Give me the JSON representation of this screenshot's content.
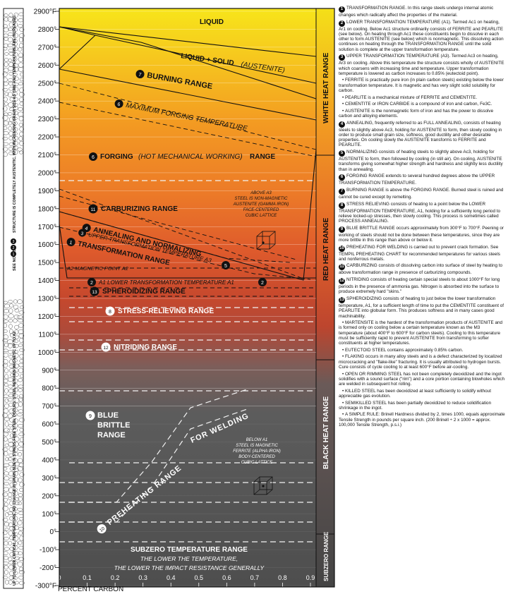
{
  "y_axis": {
    "labels": [
      "2900°F",
      "2800°",
      "2700°",
      "2600°",
      "2500°",
      "2400°",
      "2300°",
      "2200°",
      "2100°",
      "2000°",
      "1900°",
      "1800°",
      "1700°",
      "1600°",
      "1500°",
      "1400°",
      "1300°",
      "1200°",
      "1100°",
      "1000°",
      "900°",
      "800°",
      "700°",
      "600°",
      "500°",
      "400°",
      "300°",
      "200°",
      "100°",
      "0°",
      "-100°",
      "-200°",
      "-300°F"
    ],
    "values": [
      2900,
      2800,
      2700,
      2600,
      2500,
      2400,
      2300,
      2200,
      2100,
      2000,
      1900,
      1800,
      1700,
      1600,
      1500,
      1400,
      1300,
      1200,
      1100,
      1000,
      900,
      800,
      700,
      600,
      500,
      400,
      300,
      200,
      100,
      0,
      -100,
      -200,
      -300
    ]
  },
  "x_axis": {
    "labels": [
      "0",
      "0.1",
      "0.2",
      "0.3",
      "0.4",
      "0.5",
      "0.6",
      "0.7",
      "0.8",
      "0.9"
    ],
    "values": [
      0,
      0.1,
      0.2,
      0.3,
      0.4,
      0.5,
      0.6,
      0.7,
      0.8,
      0.9
    ],
    "title": "PERCENT CARBON"
  },
  "side_left": {
    "top_text": "STRUCTURE IS COMPLETELY AUSTENITIC, WITH INCREASING GRAIN SIZE AS TIME AND TEMPERATURE ARE INCREASED.",
    "see_notes": "SEE NOTES",
    "see_notes_nums": [
      "1",
      "2",
      "3"
    ],
    "bottom_text": "UP TO LOWER CRITICAL TEMPERATURE, NO CHANGE IN GRAIN SIZE IN STRESS-FREE STEEL OCCURS. STEEL REMAINS MAGNETIC UP TO A2"
  },
  "bands": {
    "white": "WHITE HEAT RANGE",
    "red": "RED HEAT RANGE",
    "black": "BLACK HEAT RANGE",
    "subzero": "SUBZERO RANGE"
  },
  "regions": {
    "liquid": "LIQUID",
    "liquid_solid": "LIQUID + SOLID",
    "liquid_solid_paren": "(AUSTENITE)",
    "burning_num": "7",
    "burning": "BURNING RANGE",
    "max_forging_num": "6",
    "max_forging": "MAXIMUM FORGING TEMPERATURE",
    "forging_num": "6",
    "forging": "FORGING",
    "forging_paren": "(HOT MECHANICAL WORKING)",
    "forging_tail": "RANGE",
    "carburizing_num": "11",
    "carburizing": "CARBURIZING RANGE",
    "annealing_num": "4",
    "annealing": "ANNEALING AND NORMALIZING",
    "normalizing_num": "5",
    "upper_num": "3",
    "upper": "UPPER TRANSFORMATION TEMPERATURE A3",
    "transformation_num": "1",
    "transformation": "TRANSFORMATION RANGE",
    "magnetic": "A2 MAGNETIC POINT A2",
    "lower_num_left": "2",
    "lower": "A1 LOWER TRANSFORMATION TEMPERATURE A1",
    "lower_num_right": "2",
    "spheroidizing_num": "13",
    "spheroidizing": "SPHEROIDIZING RANGE",
    "stress_num": "8",
    "stress": "STRESS-RELIEVING RANGE",
    "nitriding_num": "12",
    "nitriding": "NITRIDING RANGE",
    "blue_num": "9",
    "blue1": "BLUE",
    "blue2": "BRITTLE",
    "blue3": "RANGE",
    "preheat_num": "10",
    "preheat1": "PREHEATING RANGE",
    "preheat2": "FOR WELDING",
    "subzero": "SUBZERO TEMPERATURE RANGE",
    "subzero_sub1": "THE LOWER THE TEMPERATURE,",
    "subzero_sub2": "THE LOWER THE IMPACT RESISTANCE GENERALLY"
  },
  "above_a": [
    "ABOVE A3",
    "STEEL IS NON-MAGNETIC",
    "AUSTENITE (GAMMA IRON)",
    "FACE-CENTERED",
    "CUBIC LATTICE"
  ],
  "below_a": [
    "BELOW A1",
    "STEEL IS MAGNETIC",
    "FERRITE (ALPHA IRON)",
    "BODY-CENTERED",
    "CUBIC LATTICE"
  ],
  "notes": [
    {
      "num": "1",
      "text": "TRANSFORMATION RANGE. In this range steels undergo internal atomic changes which radically affect the properties of the material."
    },
    {
      "num": "2",
      "text": "LOWER TRANSFORMATION TEMPERATURE (A1). Termed Ac1 on heating, Ar1 on cooling. Below Ac1 structure ordinarily consists of FERRITE and PEARLITE (see below). On heating through Ac1 these constituents begin to dissolve in each other to form AUSTENITE (see below) which is nonmagnetic. This dissolving action continues on heating through the TRANSFORMATION RANGE until the solid solution is complete at the upper transformation temperature."
    },
    {
      "num": "3",
      "text": "UPPER TRANSFORMATION TEMPERATURE (A3). Termed Ac3 on heating, Ar3 on cooling. Above this temperature the structure consists wholly of AUSTENITE which coarsens with increasing time and temperature. Upper transformation temperature is lowered as carbon increases to 0.85% (eutectoid point)."
    },
    {
      "num": "",
      "text": "FERRITE is practically pure iron (in plain carbon steels) existing below the lower transformation temperature. It is magnetic and has very slight solid solubility for carbon."
    },
    {
      "num": "",
      "text": "PEARLITE is a mechanical mixture of FERRITE and CEMENTITE."
    },
    {
      "num": "",
      "text": "CEMENTITE or IRON CARBIDE is a compound of iron and carbon, Fe3C."
    },
    {
      "num": "",
      "text": "AUSTENITE is the nonmagnetic form of iron and has the power to dissolve carbon and alloying elements."
    },
    {
      "num": "4",
      "text": "ANNEALING, frequently referred to as FULL ANNEALING, consists of heating steels to slightly above Ac3, holding for AUSTENITE to form, then slowly cooling in order to produce small grain size, softness, good ductility and other desirable properties. On cooling slowly the AUSTENITE transforms to FERRITE and PEARLITE."
    },
    {
      "num": "5",
      "text": "NORMALIZING consists of heating steels to slightly above Ac3, holding for AUSTENITE to form, then followed by cooling (in still air). On cooling, AUSTENITE transforms giving somewhat higher strength and hardness and slightly less ductility than in annealing."
    },
    {
      "num": "6",
      "text": "FORGING RANGE extends to several hundred degrees above the UPPER TRANSFORMATION TEMPERATURE."
    },
    {
      "num": "7",
      "text": "BURNING RANGE is above the FORGING RANGE. Burned steel is ruined and cannot be cured except by remelting."
    },
    {
      "num": "8",
      "text": "STRESS RELIEVING consists of heating to a point below the LOWER TRANSFORMATION TEMPERATURE, A1, holding for a sufficiently long period to relieve locked-up stresses, then slowly cooling. This process is sometimes called PROCESS ANNEALING."
    },
    {
      "num": "9",
      "text": "BLUE BRITTLE RANGE occurs approximately from 300°F to 700°F. Peening or working of steels should not be done between these temperatures, since they are more brittle in this range than above or below it."
    },
    {
      "num": "10",
      "text": "PREHEATING FOR WELDING is carried out to prevent crack formation. See TEMPIL PREHEATING CHART for recommended temperatures for various steels and nonferrous metals."
    },
    {
      "num": "11",
      "text": "CARBURIZING consists of dissolving carbon into surface of steel by heating to above transformation range in presence of carburizing compounds."
    },
    {
      "num": "12",
      "text": "NITRIDING consists of heating certain special steels to about 1000°F for long periods in the presence of ammonia gas. Nitrogen is absorbed into the surface to produce extremely hard \"skins.\""
    },
    {
      "num": "13",
      "text": "SPHEROIDIZING consists of heating to just below the lower transformation temperature, A1, for a sufficient length of time to put the CEMENTITE constituent of PEARLITE into globular form. This produces softness and in many cases good machinability."
    },
    {
      "num": "",
      "text": "MARTENSITE is the hardest of the transformation products of AUSTENITE and is formed only on cooling below a certain temperature known as the M3 temperature (about 400°F to 600°F for carbon steels). Cooling to this temperature must be sufficiently rapid to prevent AUSTENITE from transforming to softer constituents at higher temperatures."
    },
    {
      "num": "",
      "text": "EUTECTOID STEEL contains approximately 0.85% carbon."
    },
    {
      "num": "",
      "text": "FLAKING occurs in many alloy steels and is a defect characterized by localized microcracking and \"flake-like\" fracturing. It is usually attributed to hydrogen bursts. Cure consists of cycle cooling to at least 600°F before air-cooling."
    },
    {
      "num": "",
      "text": "OPEN OR RIMMING STEEL has not been completely deoxidized and the ingot solidifies with a sound surface (\"rim\") and a core portion containing blowholes which are welded in subsequent hot rolling."
    },
    {
      "num": "",
      "text": "KILLED STEEL has been deoxidized at least sufficiently to solidify without appreciable gas evolution."
    },
    {
      "num": "",
      "text": "SEMIKILLED STEEL has been partially deoxidized to reduce solidification shrinkage in the ingot."
    },
    {
      "num": "",
      "text": "A SIMPLE RULE: Brinell Hardness divided by 2, times 1000, equals approximate Tensile Strength in pounds per square inch. (200 Brinell ÷ 2 x 1000 = approx. 100,000 Tensile Strength, p.s.i.)"
    }
  ],
  "colors": {
    "top_yellow": "#f5e11b",
    "mid_orange": "#e8772c",
    "red": "#c63c2a",
    "dark_gray": "#555555",
    "black_heat": "#4a4a4a"
  }
}
